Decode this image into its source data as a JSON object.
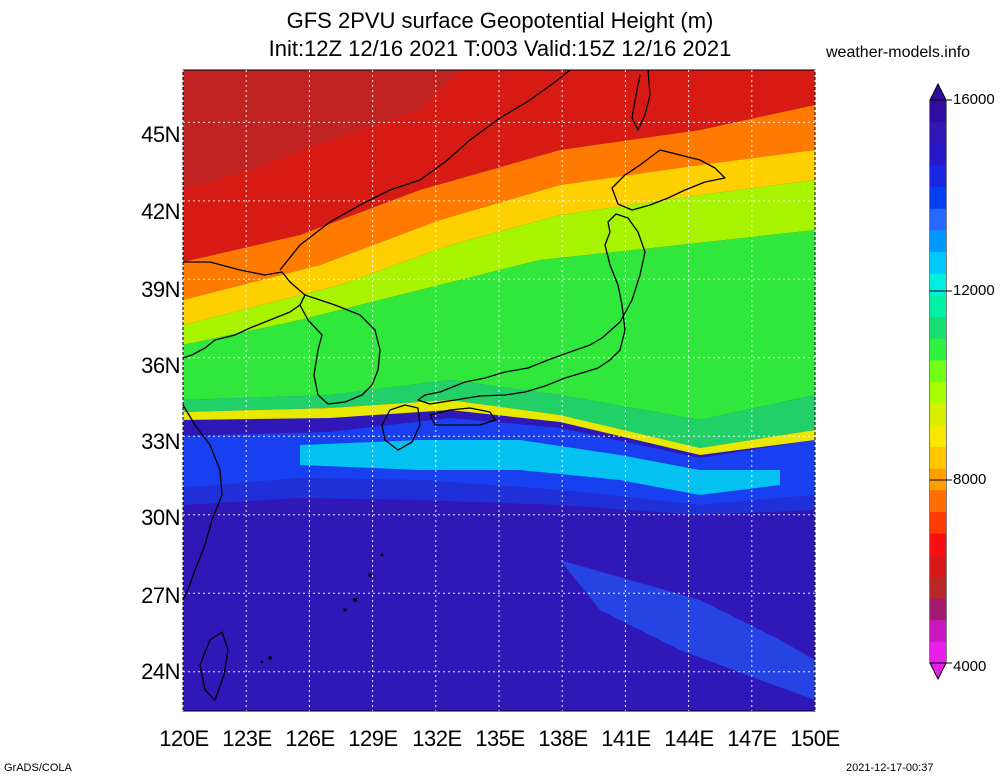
{
  "title": {
    "line1": "GFS 2PVU surface Geopotential Height (m)",
    "line2": "Init:12Z 12/16 2021 T:003 Valid:15Z 12/16 2021"
  },
  "site": "weather-models.info",
  "footer": {
    "left": "GrADS/COLA",
    "right": "2021-12-17-00:37"
  },
  "map": {
    "lon_range": [
      120,
      150
    ],
    "lat_range": [
      22.5,
      47
    ],
    "lat_ticks": [
      "45N",
      "42N",
      "39N",
      "36N",
      "33N",
      "30N",
      "27N",
      "24N"
    ],
    "lon_ticks": [
      "120E",
      "123E",
      "126E",
      "129E",
      "132E",
      "135E",
      "138E",
      "141E",
      "144E",
      "147E",
      "150E"
    ],
    "grid": "dotted"
  },
  "colorbar": {
    "labels": [
      "16000",
      "12000",
      "8000",
      "4000"
    ],
    "colors": [
      "#e81fe8",
      "#c818c0",
      "#a01a70",
      "#b82828",
      "#d81818",
      "#f81010",
      "#ff3c00",
      "#ff6e00",
      "#ffa000",
      "#ffc800",
      "#f8e800",
      "#d8f000",
      "#a8ff00",
      "#70ff18",
      "#30f040",
      "#18e070",
      "#00f0a8",
      "#00f0e0",
      "#00c8ff",
      "#0098ff",
      "#2868ff",
      "#0040f0",
      "#1828e0",
      "#2818c8",
      "#3018b8",
      "#300ca0"
    ]
  }
}
